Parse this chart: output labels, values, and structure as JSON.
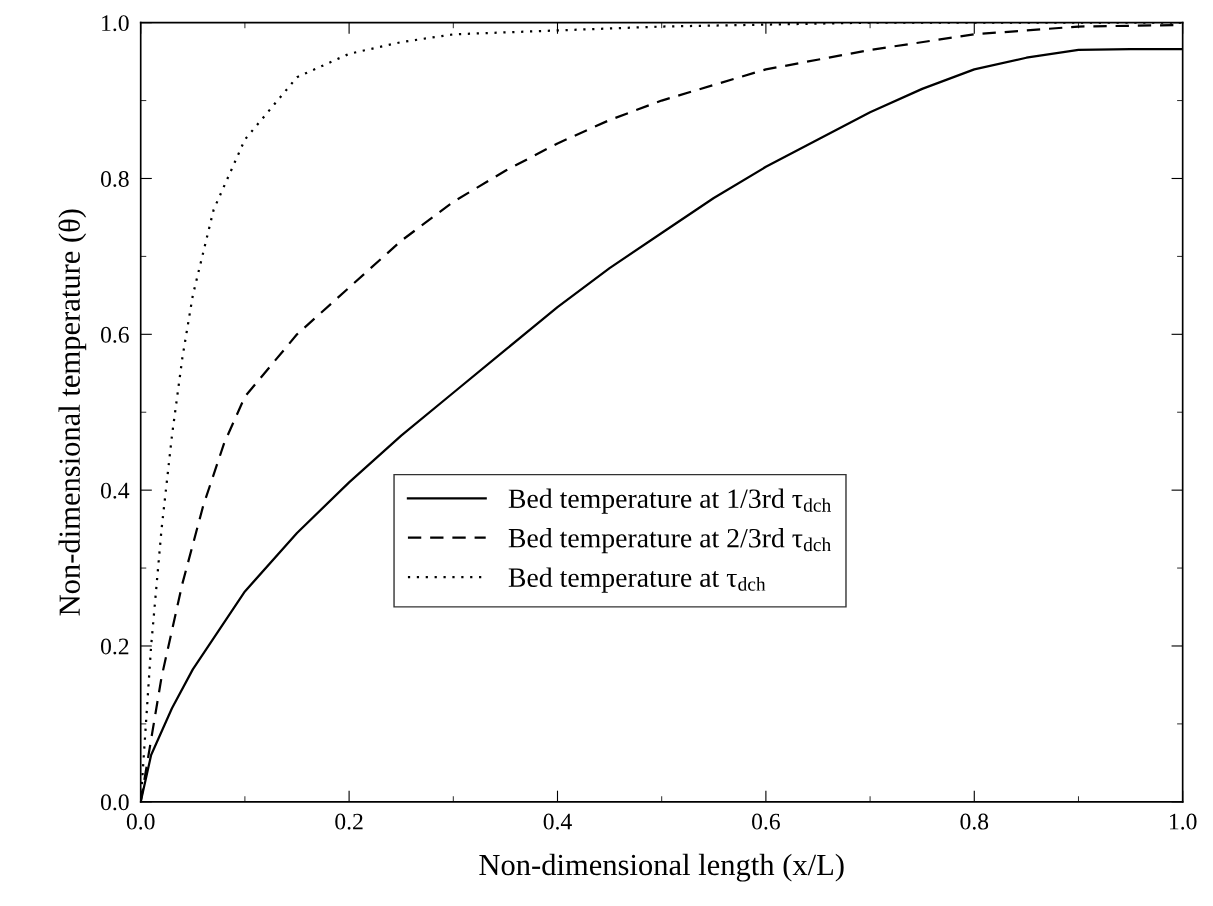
{
  "chart_data": {
    "type": "line",
    "xlabel": "Non-dimensional length (x/L)",
    "ylabel": "Non-dimensional temperature (θ)",
    "xlim": [
      0,
      1
    ],
    "ylim": [
      0,
      1
    ],
    "xticks": [
      {
        "value": 0,
        "label": "0.0"
      },
      0.2,
      0.4,
      0.6,
      0.8,
      {
        "value": 1,
        "label": "1.0"
      }
    ],
    "yticks": [
      {
        "value": 0,
        "label": "0.0"
      },
      0.2,
      0.4,
      0.6,
      0.8,
      {
        "value": 1,
        "label": "1.0"
      }
    ],
    "grid": false,
    "legend": "center",
    "marker": "none",
    "series": [
      {
        "name": "Bed temperature at 1/3rd τ$_{dch}$",
        "color": "#000000",
        "line_style": "solid",
        "x": [
          0,
          0.01,
          0.03,
          0.05,
          0.1,
          0.15,
          0.2,
          0.25,
          0.3,
          0.35,
          0.4,
          0.45,
          0.5,
          0.55,
          0.6,
          0.65,
          0.7,
          0.75,
          0.8,
          0.85,
          0.9,
          0.95,
          1.0
        ],
        "values": [
          0,
          0.06,
          0.12,
          0.17,
          0.27,
          0.345,
          0.41,
          0.47,
          0.525,
          0.58,
          0.635,
          0.685,
          0.73,
          0.775,
          0.815,
          0.85,
          0.885,
          0.915,
          0.94,
          0.955,
          0.965,
          0.966,
          0.966
        ]
      },
      {
        "name": "Bed temperature at 2/3rd τ$_{dch}$",
        "color": "#000000",
        "line_style": "dashed",
        "x": [
          0,
          0.01,
          0.02,
          0.04,
          0.06,
          0.08,
          0.1,
          0.15,
          0.2,
          0.25,
          0.3,
          0.35,
          0.4,
          0.45,
          0.5,
          0.6,
          0.7,
          0.8,
          0.9,
          1.0
        ],
        "values": [
          0,
          0.08,
          0.16,
          0.28,
          0.38,
          0.46,
          0.52,
          0.6,
          0.66,
          0.72,
          0.77,
          0.81,
          0.845,
          0.875,
          0.9,
          0.94,
          0.965,
          0.985,
          0.995,
          0.997
        ]
      },
      {
        "name": "Bed temperature at τ$_{dch}$",
        "color": "#000000",
        "line_style": "dotted",
        "x": [
          0,
          0.005,
          0.01,
          0.02,
          0.03,
          0.04,
          0.05,
          0.07,
          0.1,
          0.15,
          0.2,
          0.25,
          0.3,
          0.4,
          0.5,
          0.7,
          1.0
        ],
        "values": [
          0,
          0.1,
          0.2,
          0.35,
          0.47,
          0.57,
          0.65,
          0.76,
          0.85,
          0.93,
          0.96,
          0.975,
          0.985,
          0.99,
          0.995,
          1.0,
          1.0
        ]
      }
    ]
  }
}
